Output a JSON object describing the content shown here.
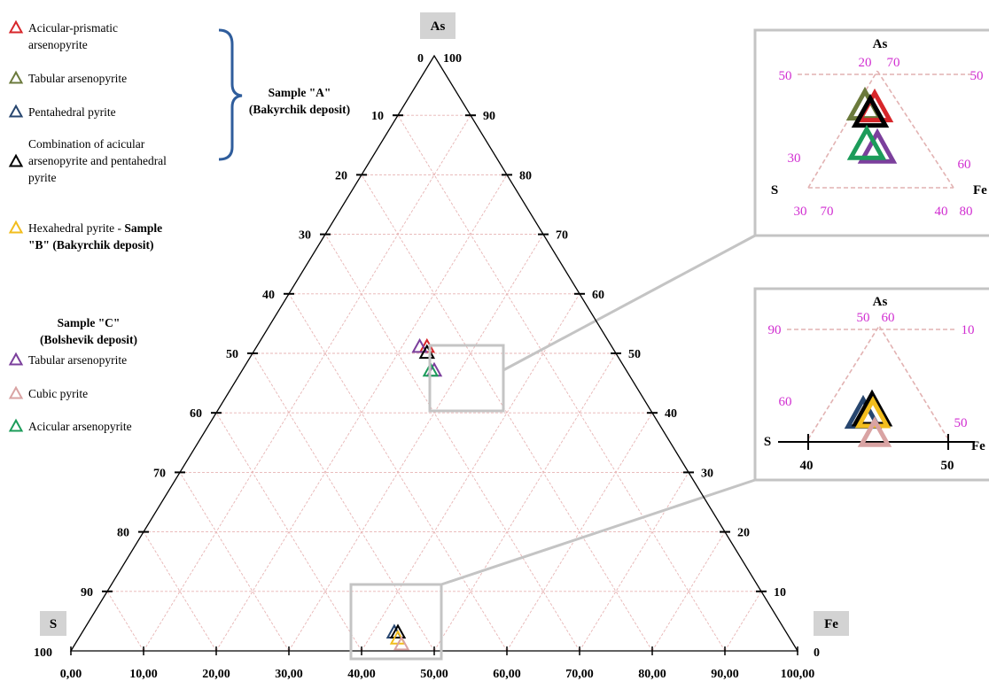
{
  "chart_data": {
    "type": "ternary",
    "vertices": {
      "top": "As",
      "left": "S",
      "right": "Fe"
    },
    "vertex_labels": {
      "top_left": "0",
      "top_right": "100",
      "bottom_left": "100",
      "bottom_right": "0"
    },
    "left_ticks": [
      "10",
      "20",
      "30",
      "40",
      "50",
      "60",
      "70",
      "80",
      "90"
    ],
    "right_ticks": [
      "90",
      "80",
      "70",
      "60",
      "50",
      "40",
      "30",
      "20",
      "10"
    ],
    "bottom_ticks": [
      "0,00",
      "10,00",
      "20,00",
      "30,00",
      "40,00",
      "50,00",
      "60,00",
      "70,00",
      "80,00",
      "90,00",
      "100,00"
    ],
    "grid": true,
    "legend_groups": [
      {
        "entries": [
          {
            "name": "Acicular-prismatic arsenopyrite",
            "lines": [
              "Acicular-prismatic",
              "arsenopyrite"
            ],
            "color": "#d7262a"
          },
          {
            "name": "Tabular arsenopyrite",
            "lines": [
              "Tabular arsenopyrite"
            ],
            "color": "#6b7a3c"
          },
          {
            "name": "Pentahedral pyrite",
            "lines": [
              "Pentahedral pyrite"
            ],
            "color": "#27466f"
          },
          {
            "name": "Combination of acicular arsenopyrite and pentahedral pyrite",
            "lines": [
              "Combination of acicular",
              "arsenopyrite  and pentahedral",
              "pyrite"
            ],
            "color": "#000000"
          }
        ],
        "label_lines": [
          "Sample \"A\"",
          "(Bakyrchik deposit)"
        ]
      },
      {
        "entries": [
          {
            "name": "Hexahedral pyrite",
            "lines": [
              "Hexahedral  pyrite - ",
              "\"B\" (Bakyrchik deposit)"
            ],
            "suffix": "Sample",
            "color": "#f2bd1d"
          }
        ]
      },
      {
        "label_lines": [
          "Sample \"C\"",
          "(Bolshevik deposit)"
        ],
        "entries": [
          {
            "name": "Tabular arsenopyrite",
            "lines": [
              "Tabular arsenopyrite"
            ],
            "color": "#7b3f9c"
          },
          {
            "name": "Cubic pyrite",
            "lines": [
              "Cubic pyrite"
            ],
            "color": "#d9a3a3"
          },
          {
            "name": "Acicular arsenopyrite",
            "lines": [
              "Acicular arsenopyrite"
            ],
            "color": "#1c9c5a"
          }
        ]
      }
    ],
    "points_upper_cluster": [
      {
        "series": "Acicular-prismatic arsenopyrite",
        "As": 51,
        "S": 25.5,
        "Fe": 23.5
      },
      {
        "series": "Tabular arsenopyrite",
        "As": 51,
        "S": 26.5,
        "Fe": 22.5
      },
      {
        "series": "Combination of acicular arsenopyrite and pentahedral pyrite",
        "As": 50,
        "S": 26,
        "Fe": 24
      },
      {
        "series": "Tabular arsenopyrite (C)",
        "As": 47,
        "S": 26.5,
        "Fe": 26.5
      },
      {
        "series": "Acicular arsenopyrite",
        "As": 47,
        "S": 27,
        "Fe": 26
      }
    ],
    "points_lower_cluster": [
      {
        "series": "Pentahedral pyrite",
        "As": 3,
        "S": 54,
        "Fe": 43
      },
      {
        "series": "Combination of acicular arsenopyrite and pentahedral pyrite",
        "As": 3,
        "S": 53.5,
        "Fe": 43.5
      },
      {
        "series": "Hexahedral pyrite",
        "As": 2,
        "S": 54,
        "Fe": 44
      },
      {
        "series": "Cubic pyrite",
        "As": 1,
        "S": 54,
        "Fe": 45
      }
    ],
    "inset_upper": {
      "vertex_labels": {
        "top": "As",
        "left": "S",
        "right": "Fe"
      },
      "labels": [
        "50",
        "20",
        "70",
        "50",
        "30",
        "60",
        "30",
        "70",
        "40",
        "80"
      ]
    },
    "inset_lower": {
      "vertex_labels": {
        "top": "As",
        "left": "S",
        "right": "Fe"
      },
      "labels": [
        "90",
        "50",
        "60",
        "10",
        "60",
        "50"
      ],
      "axis_ticks": [
        "40",
        "50"
      ]
    }
  }
}
